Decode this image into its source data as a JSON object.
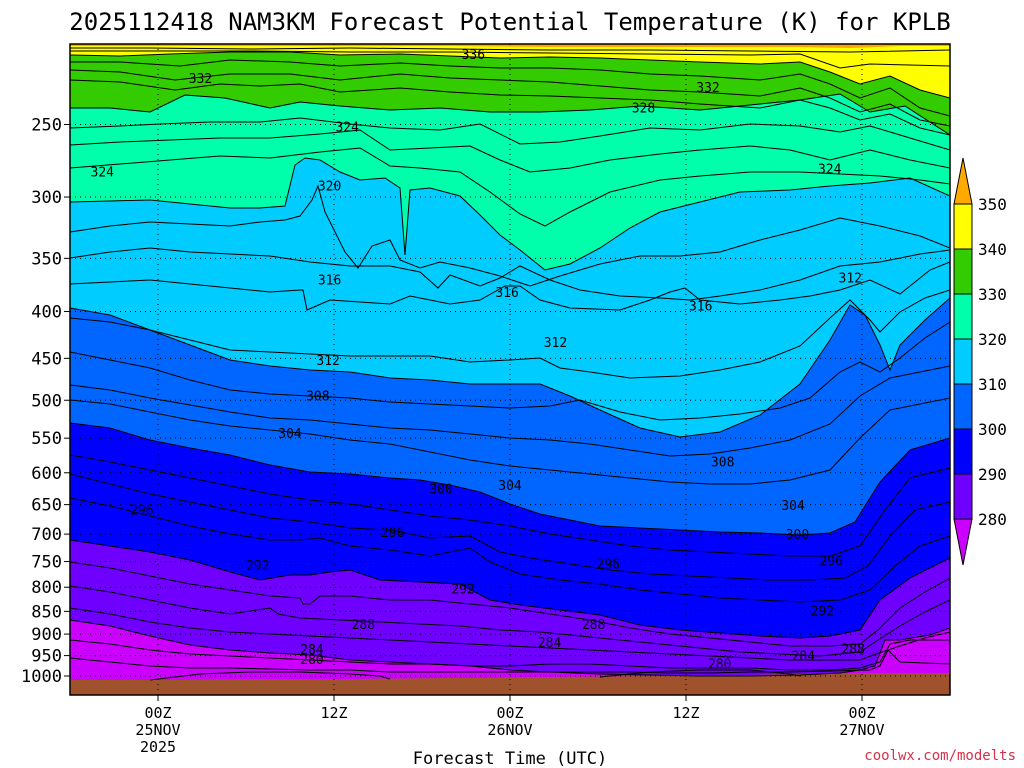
{
  "chart_data": {
    "type": "contour",
    "title": "2025112418 NAM3KM Forecast Potential Temperature (K) for KPLB",
    "xlabel": "Forecast Time (UTC)",
    "ylabel": "",
    "credit": "coolwx.com/modelts",
    "y_pressure_levels": [
      "250",
      "300",
      "350",
      "400",
      "450",
      "500",
      "550",
      "600",
      "650",
      "700",
      "750",
      "800",
      "850",
      "900",
      "950",
      "1000"
    ],
    "x_ticks": [
      {
        "hours": 6,
        "top": "00Z",
        "mid": "25NOV",
        "bottom": "2025"
      },
      {
        "hours": 18,
        "top": "12Z",
        "mid": "",
        "bottom": ""
      },
      {
        "hours": 30,
        "top": "00Z",
        "mid": "26NOV",
        "bottom": ""
      },
      {
        "hours": 42,
        "top": "12Z",
        "mid": "",
        "bottom": ""
      },
      {
        "hours": 54,
        "top": "00Z",
        "mid": "27NOV",
        "bottom": ""
      }
    ],
    "x_range_hours": [
      0,
      60
    ],
    "colorbar": {
      "unit": "K",
      "levels": [
        "280",
        "290",
        "300",
        "310",
        "320",
        "330",
        "340",
        "350"
      ],
      "colors": [
        "#cc00ff",
        "#6f00ff",
        "#0000ff",
        "#0066ff",
        "#00ccff",
        "#00ffaa",
        "#33cc00",
        "#ffff00",
        "#ffaa00"
      ]
    },
    "contour_labels": [
      {
        "text": "332",
        "at": [
          8.9,
          223
        ]
      },
      {
        "text": "336",
        "at": [
          27.5,
          210
        ]
      },
      {
        "text": "332",
        "at": [
          43.5,
          228
        ]
      },
      {
        "text": "328",
        "at": [
          39.1,
          240
        ]
      },
      {
        "text": "324",
        "at": [
          18.9,
          252
        ]
      },
      {
        "text": "324",
        "at": [
          2.2,
          282
        ]
      },
      {
        "text": "324",
        "at": [
          51.8,
          280
        ]
      },
      {
        "text": "320",
        "at": [
          17.7,
          292
        ]
      },
      {
        "text": "316",
        "at": [
          17.7,
          370
        ]
      },
      {
        "text": "316",
        "at": [
          29.8,
          382
        ]
      },
      {
        "text": "316",
        "at": [
          43,
          395
        ]
      },
      {
        "text": "312",
        "at": [
          53.2,
          368
        ]
      },
      {
        "text": "312",
        "at": [
          17.6,
          453
        ]
      },
      {
        "text": "312",
        "at": [
          33.1,
          433
        ]
      },
      {
        "text": "308",
        "at": [
          16.9,
          495
        ]
      },
      {
        "text": "308",
        "at": [
          44.5,
          585
        ]
      },
      {
        "text": "304",
        "at": [
          15,
          544
        ]
      },
      {
        "text": "304",
        "at": [
          30,
          620
        ]
      },
      {
        "text": "304",
        "at": [
          49.3,
          652
        ]
      },
      {
        "text": "300",
        "at": [
          25.3,
          626
        ]
      },
      {
        "text": "300",
        "at": [
          49.6,
          702
        ]
      },
      {
        "text": "296",
        "at": [
          4.9,
          660
        ]
      },
      {
        "text": "296",
        "at": [
          22,
          698
        ]
      },
      {
        "text": "296",
        "at": [
          36.7,
          756
        ]
      },
      {
        "text": "296",
        "at": [
          51.9,
          750
        ]
      },
      {
        "text": "292",
        "at": [
          12.8,
          758
        ]
      },
      {
        "text": "292",
        "at": [
          26.8,
          805
        ]
      },
      {
        "text": "292",
        "at": [
          51.3,
          850
        ]
      },
      {
        "text": "288",
        "at": [
          20,
          880
        ]
      },
      {
        "text": "288",
        "at": [
          35.7,
          880
        ]
      },
      {
        "text": "288",
        "at": [
          53.4,
          935
        ]
      },
      {
        "text": "284",
        "at": [
          16.5,
          937
        ]
      },
      {
        "text": "284",
        "at": [
          32.7,
          920
        ]
      },
      {
        "text": "284",
        "at": [
          50,
          952
        ]
      },
      {
        "text": "280",
        "at": [
          16.5,
          960
        ]
      },
      {
        "text": "280",
        "at": [
          44.3,
          972
        ]
      }
    ]
  }
}
